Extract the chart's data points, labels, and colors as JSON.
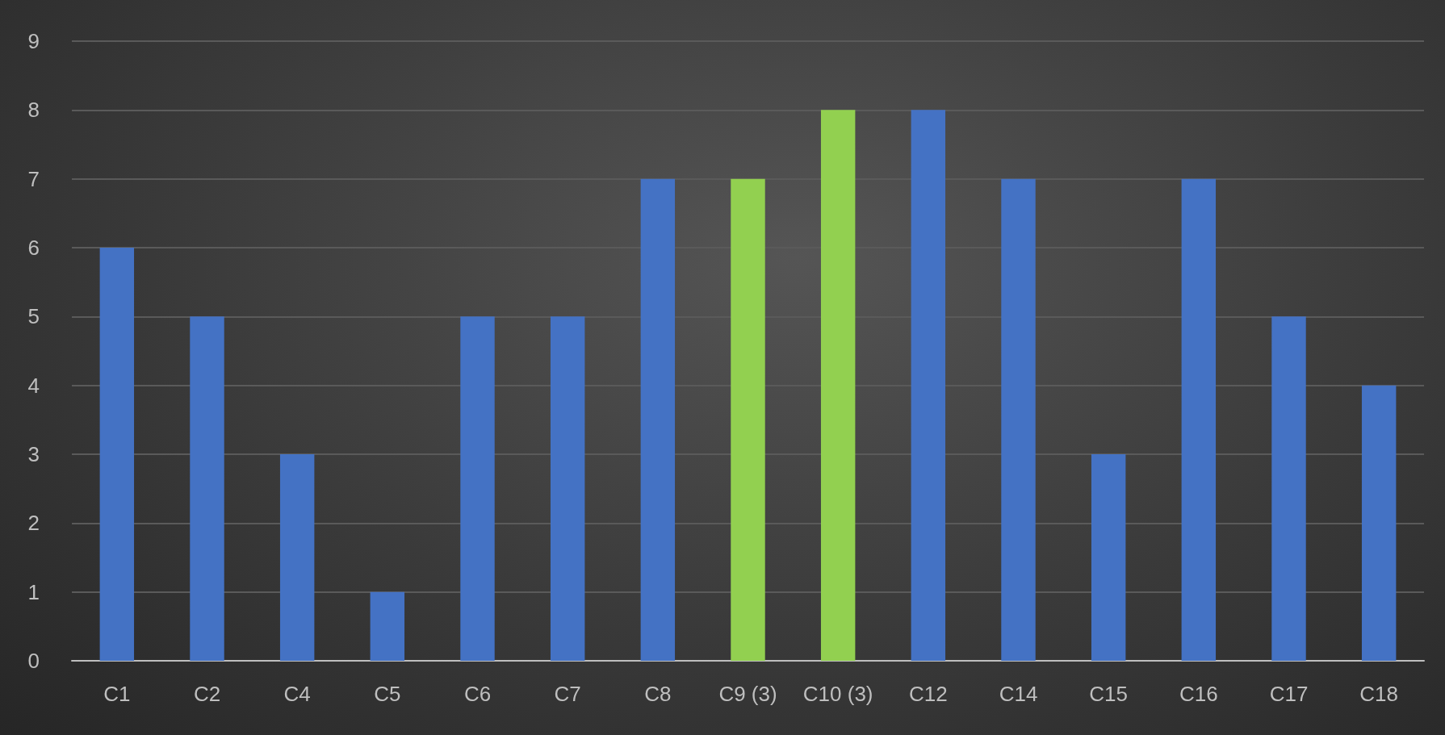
{
  "chart_data": {
    "type": "bar",
    "categories": [
      "C1",
      "C2",
      "C4",
      "C5",
      "C6",
      "C7",
      "C8",
      "C9 (3)",
      "C10 (3)",
      "C12",
      "C14",
      "C15",
      "C16",
      "C17",
      "C18"
    ],
    "values": [
      6,
      5,
      3,
      1,
      5,
      5,
      7,
      7,
      8,
      8,
      7,
      3,
      7,
      5,
      4
    ],
    "colors": [
      "#4472c4",
      "#4472c4",
      "#4472c4",
      "#4472c4",
      "#4472c4",
      "#4472c4",
      "#4472c4",
      "#92d050",
      "#92d050",
      "#4472c4",
      "#4472c4",
      "#4472c4",
      "#4472c4",
      "#4472c4",
      "#4472c4"
    ],
    "ylim": [
      0,
      9
    ],
    "yticks": [
      0,
      1,
      2,
      3,
      4,
      5,
      6,
      7,
      8,
      9
    ],
    "grid": "y"
  }
}
